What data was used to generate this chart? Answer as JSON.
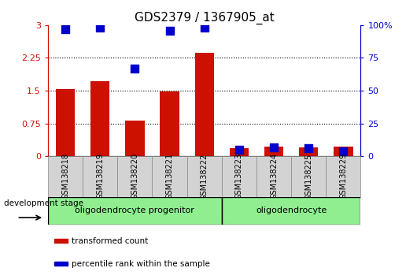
{
  "title": "GDS2379 / 1367905_at",
  "samples": [
    "GSM138218",
    "GSM138219",
    "GSM138220",
    "GSM138221",
    "GSM138222",
    "GSM138223",
    "GSM138224",
    "GSM138225",
    "GSM138229"
  ],
  "transformed_count": [
    1.53,
    1.72,
    0.82,
    1.48,
    2.36,
    0.18,
    0.22,
    0.2,
    0.22
  ],
  "percentile_rank": [
    97,
    98,
    67,
    96,
    98,
    5,
    7,
    6,
    4
  ],
  "left_ylim": [
    0,
    3
  ],
  "right_ylim": [
    0,
    100
  ],
  "left_yticks": [
    0,
    0.75,
    1.5,
    2.25,
    3
  ],
  "left_yticklabels": [
    "0",
    "0.75",
    "1.5",
    "2.25",
    "3"
  ],
  "right_yticks": [
    0,
    25,
    50,
    75,
    100
  ],
  "right_yticklabels": [
    "0",
    "25",
    "50",
    "75",
    "100%"
  ],
  "bar_color": "#cc1100",
  "dot_color": "#0000cc",
  "bar_width": 0.55,
  "dot_size": 45,
  "group_defs": [
    {
      "label": "oligodendrocyte progenitor",
      "start": 0,
      "end": 4,
      "color": "#90ee90"
    },
    {
      "label": "oligodendrocyte",
      "start": 5,
      "end": 8,
      "color": "#90ee90"
    }
  ],
  "legend_items": [
    {
      "label": "transformed count",
      "color": "#cc1100"
    },
    {
      "label": "percentile rank within the sample",
      "color": "#0000cc"
    }
  ],
  "axis_color_left": "#cc1100",
  "axis_color_right": "#0000cc",
  "tickbox_color": "#d3d3d3",
  "tickbox_edge": "#888888"
}
